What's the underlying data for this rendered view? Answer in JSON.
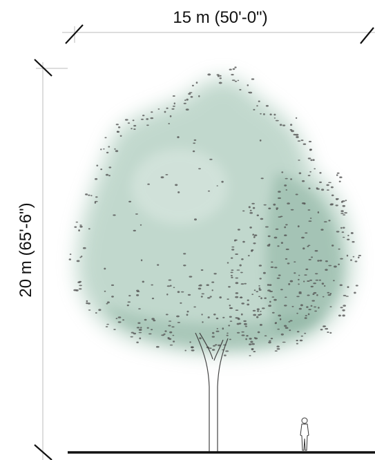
{
  "dimensions": {
    "width_label": "15 m (50'-0\")",
    "height_label": "20 m (65'-6\")"
  },
  "colors": {
    "canopy": "#8fb9a5",
    "canopy_dark": "#6f9f89",
    "leaf_dots": "#555555",
    "dimension_lines": "#bbbbbb",
    "ticks": "#111111",
    "ground": "#111111",
    "text": "#111111"
  }
}
